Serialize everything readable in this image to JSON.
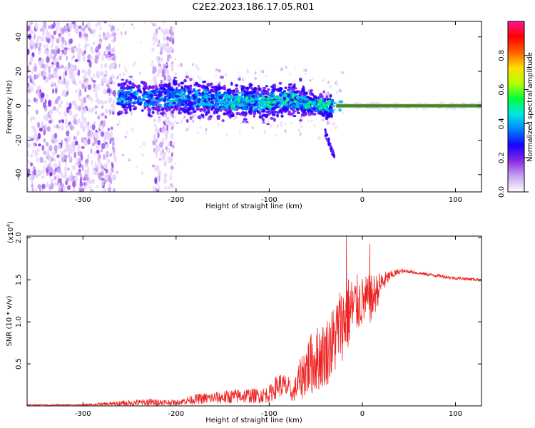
{
  "title": "C2E2.2023.186.17.05.R01",
  "chart_data": [
    {
      "type": "heatmap",
      "xlabel": "Height of straight line (km)",
      "ylabel": "Frequency (Hz)",
      "xlim": [
        -360,
        128
      ],
      "ylim": [
        -50,
        49
      ],
      "xticks": [
        -300,
        -200,
        -100,
        0,
        100
      ],
      "yticks": [
        -40,
        -20,
        0,
        20,
        40
      ],
      "colorbar": {
        "label": "Normalized spectral amplitude",
        "range": [
          0,
          1
        ],
        "ticks": [
          "0.0",
          "0.2",
          "0.4",
          "0.6",
          "0.8"
        ],
        "stops": [
          "#ffffff",
          "#c9a3f3",
          "#8a2be2",
          "#1a00ff",
          "#0080ff",
          "#00e5e5",
          "#00ff40",
          "#b4ff00",
          "#ffe000",
          "#ff6000",
          "#ff0000",
          "#ff1493"
        ]
      },
      "features": {
        "noise_regions_km": [
          [
            -360,
            -265
          ],
          [
            -225,
            -203
          ]
        ],
        "band_center_hz": [
          {
            "x": -270,
            "y": 5
          },
          {
            "x": -200,
            "y": 5
          },
          {
            "x": -150,
            "y": 3
          },
          {
            "x": -100,
            "y": 2
          },
          {
            "x": -80,
            "y": 4
          },
          {
            "x": -60,
            "y": 1
          },
          {
            "x": -40,
            "y": 0
          },
          {
            "x": -20,
            "y": 0
          },
          {
            "x": 0,
            "y": 0
          },
          {
            "x": 128,
            "y": 0
          }
        ],
        "spur": {
          "x_km": [
            -40,
            -30
          ],
          "y_hz": [
            -15,
            -30
          ]
        },
        "carrier_line_hz": 0,
        "carrier_start_km": -28
      }
    },
    {
      "type": "line",
      "xlabel": "Height of straight line (km)",
      "ylabel": "SNR (10 * v/v)",
      "y_multiplier": "(x10",
      "y_multiplier_exp": "4",
      "y_multiplier_close": ")",
      "xlim": [
        -360,
        128
      ],
      "ylim": [
        0,
        2.02
      ],
      "xticks": [
        -300,
        -200,
        -100,
        0,
        100
      ],
      "yticks": [
        0.5,
        1.0,
        1.5,
        2.0
      ],
      "ytick_labels": [
        "0.5",
        "1.0",
        "1.5",
        "2.0"
      ],
      "series": [
        {
          "name": "SNR",
          "color": "#ee2222",
          "x": [
            -360,
            -300,
            -250,
            -230,
            -200,
            -180,
            -150,
            -130,
            -110,
            -100,
            -90,
            -80,
            -75,
            -70,
            -60,
            -50,
            -40,
            -30,
            -25,
            -20,
            -15,
            -10,
            -5,
            0,
            10,
            20,
            30,
            40,
            50,
            60,
            80,
            100,
            128
          ],
          "y": [
            0.01,
            0.01,
            0.03,
            0.04,
            0.04,
            0.08,
            0.1,
            0.12,
            0.12,
            0.14,
            0.25,
            0.22,
            0.13,
            0.25,
            0.45,
            0.55,
            0.62,
            0.78,
            0.95,
            1.0,
            1.1,
            1.15,
            1.22,
            1.24,
            1.26,
            1.45,
            1.55,
            1.6,
            1.6,
            1.58,
            1.55,
            1.52,
            1.5
          ],
          "noise": [
            0.01,
            0.01,
            0.04,
            0.05,
            0.03,
            0.06,
            0.08,
            0.09,
            0.09,
            0.1,
            0.15,
            0.15,
            0.08,
            0.2,
            0.35,
            0.4,
            0.4,
            0.45,
            0.45,
            0.45,
            0.45,
            0.4,
            0.35,
            0.3,
            0.3,
            0.15,
            0.06,
            0.03,
            0.02,
            0.02,
            0.02,
            0.02,
            0.02
          ],
          "spikes": [
            {
              "x": -17,
              "y": 2.02
            },
            {
              "x": 8,
              "y": 1.93
            },
            {
              "x": -28,
              "y": 1.0
            }
          ]
        }
      ]
    }
  ]
}
